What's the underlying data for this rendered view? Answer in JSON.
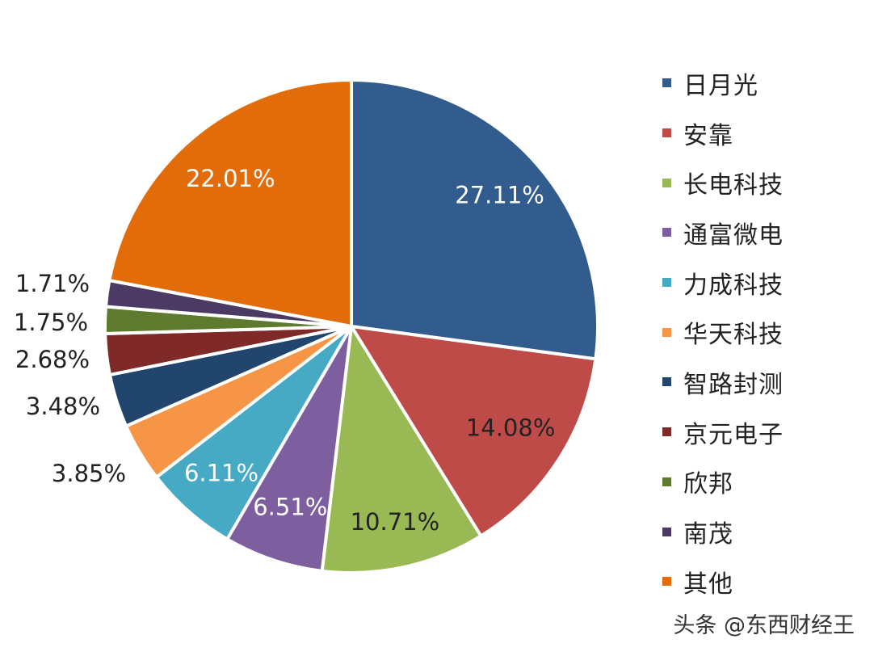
{
  "chart_data": {
    "type": "pie",
    "title": "",
    "legend_position": "right",
    "series": [
      {
        "name": "日月光",
        "value": 27.11,
        "label": "27.11%",
        "color": "#335C8E"
      },
      {
        "name": "安靠",
        "value": 14.08,
        "label": "14.08%",
        "color": "#BE4B48"
      },
      {
        "name": "长电科技",
        "value": 10.71,
        "label": "10.71%",
        "color": "#98B954"
      },
      {
        "name": "通富微电",
        "value": 6.51,
        "label": "6.51%",
        "color": "#7D5FA0"
      },
      {
        "name": "力成科技",
        "value": 6.11,
        "label": "6.11%",
        "color": "#46AAC5"
      },
      {
        "name": "华天科技",
        "value": 3.85,
        "label": "3.85%",
        "color": "#F69545"
      },
      {
        "name": "智路封测",
        "value": 3.48,
        "label": "3.48%",
        "color": "#21456C"
      },
      {
        "name": "京元电子",
        "value": 2.68,
        "label": "2.68%",
        "color": "#7F2A29"
      },
      {
        "name": "欣邦",
        "value": 1.75,
        "label": "1.75%",
        "color": "#5E7A2F"
      },
      {
        "name": "南茂",
        "value": 1.71,
        "label": "1.71%",
        "color": "#4B3A64"
      },
      {
        "name": "其他",
        "value": 22.01,
        "label": "22.01%",
        "color": "#E36C0A"
      }
    ]
  },
  "watermark": "头条 @东西财经王"
}
